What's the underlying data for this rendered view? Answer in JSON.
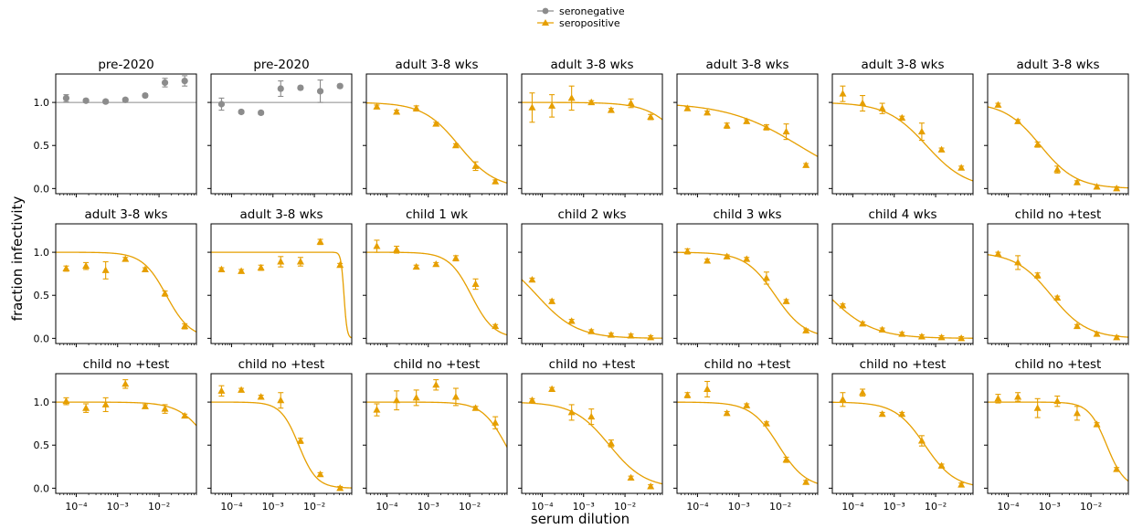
{
  "figure": {
    "ylabel": "fraction infectivity",
    "xlabel": "serum dilution"
  },
  "legend": {
    "placement": "top-center",
    "entries": [
      {
        "label": "seronegative",
        "color": "#8c8c8c",
        "marker": "circle"
      },
      {
        "label": "seropositive",
        "color": "#e69f00",
        "marker": "triangle"
      }
    ]
  },
  "colors": {
    "seronegative": "#8c8c8c",
    "seropositive": "#e69f00"
  },
  "axes_common": {
    "xscale": "log",
    "xlim": [
      3.2e-05,
      0.08
    ],
    "ylim": [
      -0.06,
      1.33
    ],
    "yticks": [
      0.0,
      0.5,
      1.0
    ],
    "ytick_labels": [
      "0.0",
      "0.5",
      "1.0"
    ],
    "xticks": [
      0.0001,
      0.001,
      0.01
    ],
    "xtick_labels": [
      "10−4",
      "10−3",
      "10−2"
    ],
    "grid": false
  },
  "chart_data": [
    {
      "type": "scatter",
      "title": "pre-2020",
      "group": "seronegative",
      "reference_line": 1.0,
      "x": [
        5.72e-05,
        0.000172,
        0.000514,
        0.00154,
        0.00463,
        0.0139,
        0.0417
      ],
      "y": [
        1.05,
        1.02,
        1.01,
        1.03,
        1.08,
        1.23,
        1.25
      ],
      "err": [
        0.04,
        0.02,
        0.02,
        0.02,
        0.02,
        0.05,
        0.06
      ]
    },
    {
      "type": "scatter",
      "title": "pre-2020",
      "group": "seronegative",
      "reference_line": 1.0,
      "x": [
        5.72e-05,
        0.000172,
        0.000514,
        0.00154,
        0.00463,
        0.0139,
        0.0417
      ],
      "y": [
        0.98,
        0.89,
        0.88,
        1.16,
        1.17,
        1.13,
        1.19
      ],
      "err": [
        0.07,
        0.02,
        0.02,
        0.09,
        0.02,
        0.13,
        0.02
      ]
    },
    {
      "type": "line",
      "title": "adult 3-8 wks",
      "group": "seropositive",
      "fit": {
        "ic50": 0.0055,
        "hill": 1.0
      },
      "x": [
        5.72e-05,
        0.000172,
        0.000514,
        0.00154,
        0.00463,
        0.0139,
        0.0417
      ],
      "y": [
        0.95,
        0.89,
        0.93,
        0.75,
        0.5,
        0.26,
        0.08
      ],
      "err": [
        0.02,
        0.02,
        0.03,
        0.02,
        0.02,
        0.05,
        0.02
      ]
    },
    {
      "type": "line",
      "title": "adult 3-8 wks",
      "group": "seropositive",
      "fit": {
        "ic50": 0.32,
        "hill": 1.0
      },
      "x": [
        5.72e-05,
        0.000172,
        0.000514,
        0.00154,
        0.00463,
        0.0139,
        0.0417
      ],
      "y": [
        0.94,
        0.96,
        1.05,
        1.0,
        0.91,
        0.99,
        0.83
      ],
      "err": [
        0.17,
        0.13,
        0.14,
        0.02,
        0.02,
        0.05,
        0.03
      ]
    },
    {
      "type": "line",
      "title": "adult 3-8 wks",
      "group": "seropositive",
      "fit": {
        "ic50": 0.028,
        "hill": 0.5
      },
      "x": [
        5.72e-05,
        0.000172,
        0.000514,
        0.00154,
        0.00463,
        0.0139,
        0.0417
      ],
      "y": [
        0.93,
        0.88,
        0.73,
        0.78,
        0.71,
        0.66,
        0.27
      ],
      "err": [
        0.02,
        0.02,
        0.03,
        0.02,
        0.03,
        0.09,
        0.02
      ]
    },
    {
      "type": "line",
      "title": "adult 3-8 wks",
      "group": "seropositive",
      "fit": {
        "ic50": 0.006,
        "hill": 0.9
      },
      "x": [
        5.72e-05,
        0.000172,
        0.000514,
        0.00154,
        0.00463,
        0.0139,
        0.0417
      ],
      "y": [
        1.1,
        0.99,
        0.93,
        0.82,
        0.66,
        0.45,
        0.24
      ],
      "err": [
        0.09,
        0.09,
        0.06,
        0.02,
        0.1,
        0.02,
        0.02
      ]
    },
    {
      "type": "line",
      "title": "adult 3-8 wks",
      "group": "seropositive",
      "fit": {
        "ic50": 0.0006,
        "hill": 1.0
      },
      "x": [
        5.72e-05,
        0.000172,
        0.000514,
        0.00154,
        0.00463,
        0.0139,
        0.0417
      ],
      "y": [
        0.97,
        0.78,
        0.51,
        0.22,
        0.07,
        0.02,
        0.0
      ],
      "err": [
        0.02,
        0.02,
        0.03,
        0.04,
        0.02,
        0.02,
        0.02
      ]
    },
    {
      "type": "line",
      "title": "adult 3-8 wks",
      "group": "seropositive",
      "fit": {
        "ic50": 0.015,
        "hill": 1.5
      },
      "x": [
        5.72e-05,
        0.000172,
        0.000514,
        0.00154,
        0.00463,
        0.0139,
        0.0417
      ],
      "y": [
        0.81,
        0.84,
        0.79,
        0.92,
        0.8,
        0.52,
        0.14
      ],
      "err": [
        0.03,
        0.04,
        0.1,
        0.02,
        0.02,
        0.03,
        0.03
      ]
    },
    {
      "type": "line",
      "title": "adult 3-8 wks",
      "group": "seropositive",
      "fit": {
        "ic50": 0.052,
        "hill": 12
      },
      "x": [
        5.72e-05,
        0.000172,
        0.000514,
        0.00154,
        0.00463,
        0.0139,
        0.0417
      ],
      "y": [
        0.8,
        0.78,
        0.82,
        0.89,
        0.89,
        1.12,
        0.85
      ],
      "err": [
        0.02,
        0.02,
        0.03,
        0.06,
        0.05,
        0.03,
        0.02
      ]
    },
    {
      "type": "line",
      "title": "child 1 wk",
      "group": "seropositive",
      "fit": {
        "ic50": 0.011,
        "hill": 1.6
      },
      "x": [
        5.72e-05,
        0.000172,
        0.000514,
        0.00154,
        0.00463,
        0.0139,
        0.0417
      ],
      "y": [
        1.07,
        1.03,
        0.83,
        0.86,
        0.93,
        0.63,
        0.14
      ],
      "err": [
        0.07,
        0.04,
        0.02,
        0.02,
        0.03,
        0.06,
        0.02
      ]
    },
    {
      "type": "line",
      "title": "child 2 wks",
      "group": "seropositive",
      "fit": {
        "ic50": 7.5e-05,
        "hill": 0.9
      },
      "x": [
        5.72e-05,
        0.000172,
        0.000514,
        0.00154,
        0.00463,
        0.0139,
        0.0417
      ],
      "y": [
        0.68,
        0.43,
        0.2,
        0.08,
        0.04,
        0.03,
        0.01
      ],
      "err": [
        0.02,
        0.02,
        0.02,
        0.02,
        0.02,
        0.02,
        0.02
      ]
    },
    {
      "type": "line",
      "title": "child 3 wks",
      "group": "seropositive",
      "fit": {
        "ic50": 0.0075,
        "hill": 1.2
      },
      "x": [
        5.72e-05,
        0.000172,
        0.000514,
        0.00154,
        0.00463,
        0.0139,
        0.0417
      ],
      "y": [
        1.01,
        0.9,
        0.95,
        0.92,
        0.7,
        0.43,
        0.09
      ],
      "err": [
        0.03,
        0.02,
        0.02,
        0.02,
        0.07,
        0.02,
        0.02
      ]
    },
    {
      "type": "line",
      "title": "child 4 wks",
      "group": "seropositive",
      "fit": {
        "ic50": 2.5e-05,
        "hill": 0.8
      },
      "x": [
        5.72e-05,
        0.000172,
        0.000514,
        0.00154,
        0.00463,
        0.0139,
        0.0417
      ],
      "y": [
        0.38,
        0.17,
        0.1,
        0.05,
        0.02,
        0.01,
        0.0
      ],
      "err": [
        0.02,
        0.02,
        0.02,
        0.02,
        0.02,
        0.02,
        0.02
      ]
    },
    {
      "type": "line",
      "title": "child no +test",
      "group": "seropositive",
      "fit": {
        "ic50": 0.0011,
        "hill": 1.0
      },
      "x": [
        5.72e-05,
        0.000172,
        0.000514,
        0.00154,
        0.00463,
        0.0139,
        0.0417
      ],
      "y": [
        0.98,
        0.88,
        0.73,
        0.47,
        0.14,
        0.05,
        0.01
      ],
      "err": [
        0.02,
        0.08,
        0.03,
        0.02,
        0.02,
        0.02,
        0.02
      ]
    },
    {
      "type": "line",
      "title": "child no +test",
      "group": "seropositive",
      "fit": {
        "ic50": 0.18,
        "hill": 1.2
      },
      "x": [
        5.72e-05,
        0.000172,
        0.000514,
        0.00154,
        0.00463,
        0.0139,
        0.0417
      ],
      "y": [
        1.01,
        0.93,
        0.97,
        1.21,
        0.95,
        0.92,
        0.84
      ],
      "err": [
        0.04,
        0.05,
        0.08,
        0.05,
        0.02,
        0.05,
        0.02
      ]
    },
    {
      "type": "line",
      "title": "child no +test",
      "group": "seropositive",
      "fit": {
        "ic50": 0.0042,
        "hill": 2.0
      },
      "x": [
        5.72e-05,
        0.000172,
        0.000514,
        0.00154,
        0.00463,
        0.0139,
        0.0417
      ],
      "y": [
        1.13,
        1.14,
        1.06,
        1.02,
        0.55,
        0.16,
        0.0
      ],
      "err": [
        0.06,
        0.02,
        0.02,
        0.09,
        0.03,
        0.02,
        0.02
      ]
    },
    {
      "type": "line",
      "title": "child no +test",
      "group": "seropositive",
      "fit": {
        "ic50": 0.075,
        "hill": 1.5
      },
      "x": [
        5.72e-05,
        0.000172,
        0.000514,
        0.00154,
        0.00463,
        0.0139,
        0.0417
      ],
      "y": [
        0.91,
        1.02,
        1.05,
        1.2,
        1.06,
        0.93,
        0.76
      ],
      "err": [
        0.07,
        0.11,
        0.09,
        0.06,
        0.1,
        0.02,
        0.07
      ]
    },
    {
      "type": "line",
      "title": "child no +test",
      "group": "seropositive",
      "fit": {
        "ic50": 0.0042,
        "hill": 1.0
      },
      "x": [
        5.72e-05,
        0.000172,
        0.000514,
        0.00154,
        0.00463,
        0.0139,
        0.0417
      ],
      "y": [
        1.02,
        1.15,
        0.88,
        0.83,
        0.52,
        0.12,
        0.02
      ],
      "err": [
        0.02,
        0.02,
        0.09,
        0.09,
        0.04,
        0.02,
        0.02
      ]
    },
    {
      "type": "line",
      "title": "child no +test",
      "group": "seropositive",
      "fit": {
        "ic50": 0.009,
        "hill": 1.3
      },
      "x": [
        5.72e-05,
        0.000172,
        0.000514,
        0.00154,
        0.00463,
        0.0139,
        0.0417
      ],
      "y": [
        1.08,
        1.15,
        0.87,
        0.96,
        0.75,
        0.33,
        0.07
      ],
      "err": [
        0.03,
        0.09,
        0.02,
        0.02,
        0.02,
        0.03,
        0.02
      ]
    },
    {
      "type": "line",
      "title": "child no +test",
      "group": "seropositive",
      "fit": {
        "ic50": 0.0055,
        "hill": 1.2
      },
      "x": [
        5.72e-05,
        0.000172,
        0.000514,
        0.00154,
        0.00463,
        0.0139,
        0.0417
      ],
      "y": [
        1.03,
        1.11,
        0.86,
        0.86,
        0.55,
        0.26,
        0.04
      ],
      "err": [
        0.08,
        0.04,
        0.02,
        0.02,
        0.06,
        0.02,
        0.02
      ]
    },
    {
      "type": "line",
      "title": "child no +test",
      "group": "seropositive",
      "fit": {
        "ic50": 0.024,
        "hill": 2.0
      },
      "x": [
        5.72e-05,
        0.000172,
        0.000514,
        0.00154,
        0.00463,
        0.0139,
        0.0417
      ],
      "y": [
        1.04,
        1.06,
        0.93,
        1.01,
        0.87,
        0.74,
        0.22
      ],
      "err": [
        0.05,
        0.05,
        0.11,
        0.06,
        0.08,
        0.02,
        0.02
      ]
    }
  ]
}
